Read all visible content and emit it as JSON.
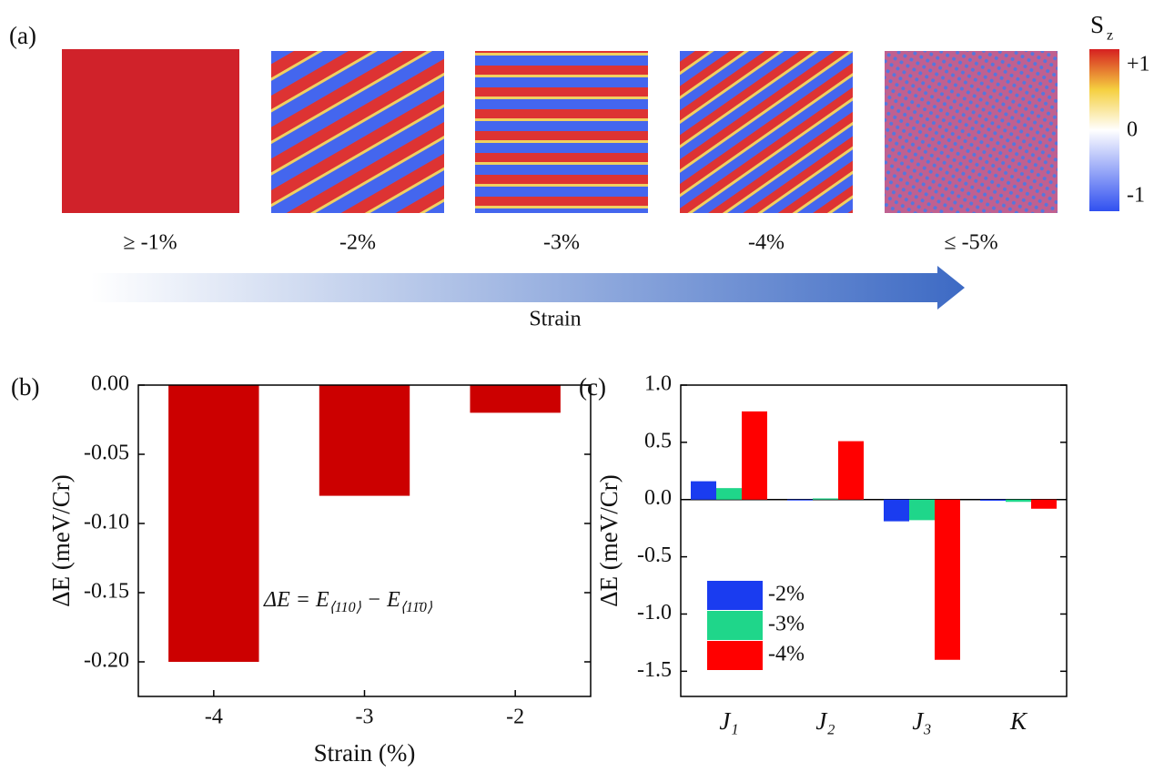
{
  "panel_a": {
    "label": "(a)",
    "strain_labels": [
      "≥ -1%",
      "-2%",
      "-3%",
      "-4%",
      "≤ -5%"
    ],
    "arrow_label": "Strain",
    "colorbar": {
      "title": "S",
      "title_sub": "z",
      "ticks": [
        "+1",
        "0",
        "-1"
      ]
    }
  },
  "chart_data": [
    {
      "type": "bar",
      "panel_label": "(b)",
      "x": [
        -4,
        -3,
        -2
      ],
      "values": [
        -0.2,
        -0.08,
        -0.02
      ],
      "color": "#cc0000",
      "xlim": [
        -4.5,
        -1.5
      ],
      "xticks": [
        -4,
        -3,
        -2
      ],
      "ylim": [
        -0.225,
        0.0
      ],
      "yticks": [
        {
          "value": 0.0,
          "label": "0.00"
        },
        {
          "value": -0.05,
          "label": "-0.05"
        },
        {
          "value": -0.1,
          "label": "-0.10"
        },
        {
          "value": -0.15,
          "label": "-0.15"
        },
        {
          "value": -0.2,
          "label": "-0.20"
        }
      ],
      "xlabel": "Strain (%)",
      "ylabel": "ΔE (meV/Cr)",
      "annotation": {
        "lhs": "ΔE = E",
        "sub1": "⟨110⟩",
        "mid": " − E",
        "sub2": "⟨11̄0⟩"
      }
    },
    {
      "type": "grouped_bar",
      "panel_label": "(c)",
      "categories": [
        "J₁",
        "J₂",
        "J₃",
        "K"
      ],
      "series": [
        {
          "name": "-2%",
          "color": "#1a3cf0",
          "values": [
            0.16,
            0.0,
            -0.19,
            -0.01
          ]
        },
        {
          "name": "-3%",
          "color": "#1fd68a",
          "values": [
            0.1,
            0.01,
            -0.18,
            -0.02
          ]
        },
        {
          "name": "-4%",
          "color": "#ff0000",
          "values": [
            0.77,
            0.51,
            -1.4,
            -0.08
          ]
        }
      ],
      "ylim": [
        -1.72,
        1.0
      ],
      "yticks": [
        {
          "value": 1.0,
          "label": "1.0"
        },
        0.5,
        {
          "value": 0.0,
          "label": "0.0"
        },
        -0.5,
        {
          "value": -1.0,
          "label": "-1.0"
        },
        -1.5
      ],
      "ylabel": "ΔE (meV/Cr)",
      "legend": "lower left"
    }
  ]
}
